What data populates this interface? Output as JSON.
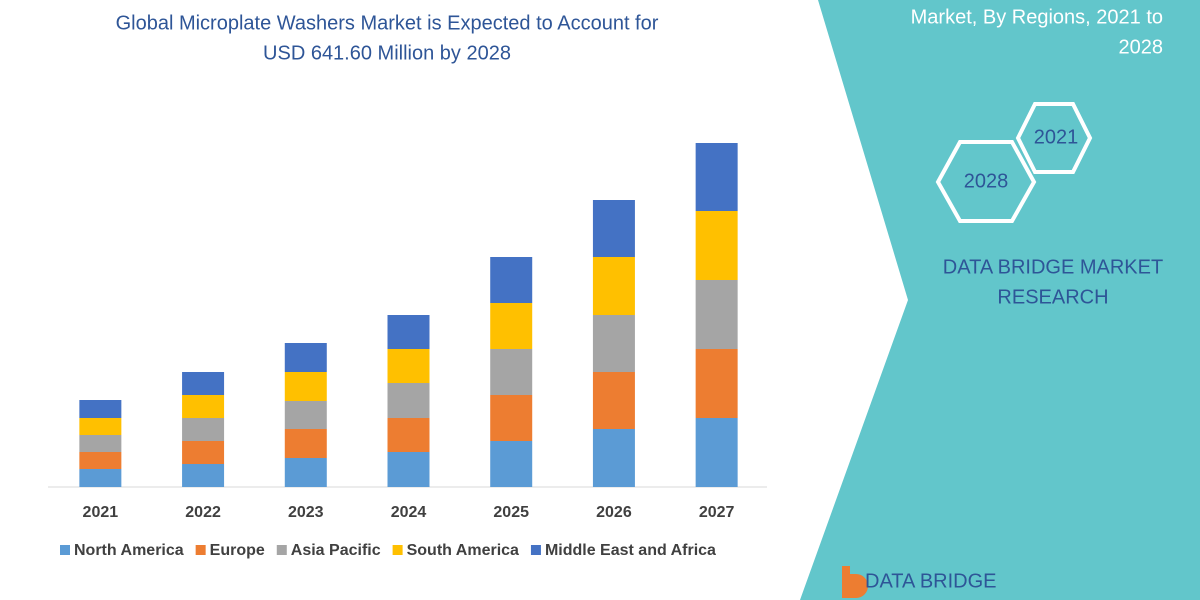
{
  "chart_data": {
    "type": "stacked_bar",
    "title_lines": [
      "Global Microplate Washers Market is Expected to Account for",
      "USD 641.60 Million by 2028"
    ],
    "categories": [
      "2021",
      "2022",
      "2023",
      "2024",
      "2025",
      "2026",
      "2027"
    ],
    "series": [
      {
        "name": "North America",
        "color": "#5b9bd5",
        "values": [
          18,
          23,
          29,
          35,
          46,
          58,
          69
        ]
      },
      {
        "name": "Europe",
        "color": "#ed7d31",
        "values": [
          17,
          23,
          29,
          34,
          46,
          57,
          69
        ]
      },
      {
        "name": "Asia Pacific",
        "color": "#a5a5a5",
        "values": [
          17,
          23,
          28,
          35,
          46,
          57,
          69
        ]
      },
      {
        "name": "South America",
        "color": "#ffc000",
        "values": [
          17,
          23,
          29,
          34,
          46,
          58,
          69
        ]
      },
      {
        "name": "Middle East and Africa",
        "color": "#4472c4",
        "values": [
          18,
          23,
          29,
          34,
          46,
          57,
          68
        ]
      }
    ]
  },
  "side_panel": {
    "heading_lines": [
      "Market, By Regions, 2021 to",
      "2028"
    ],
    "hexagons": [
      "2021",
      "2028"
    ],
    "brand_lines": [
      "DATA BRIDGE MARKET",
      "RESEARCH"
    ],
    "logo_text": "DATA BRIDGE"
  }
}
